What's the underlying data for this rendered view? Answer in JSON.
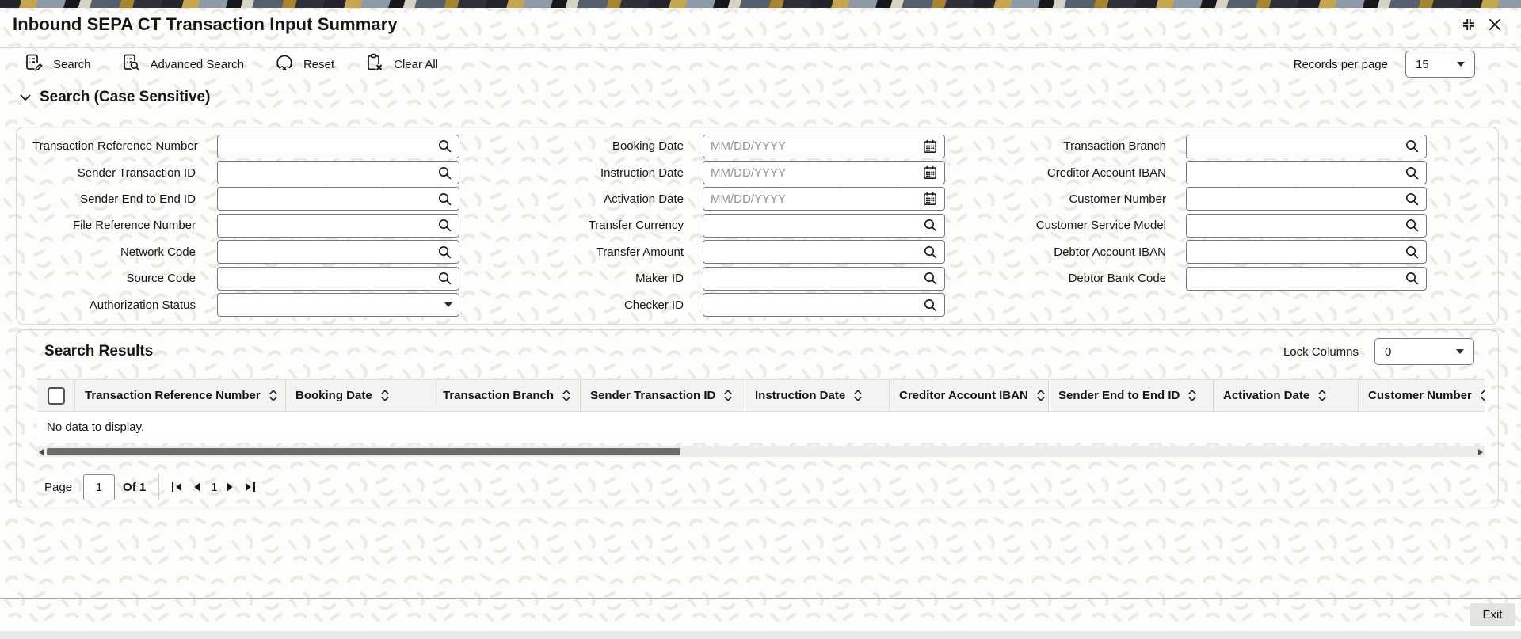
{
  "header": {
    "title": "Inbound SEPA CT Transaction Input Summary"
  },
  "toolbar": {
    "buttons": [
      {
        "label": "Search",
        "icon": "search-form-icon"
      },
      {
        "label": "Advanced Search",
        "icon": "advanced-search-icon"
      },
      {
        "label": "Reset",
        "icon": "reset-icon"
      },
      {
        "label": "Clear All",
        "icon": "clear-all-icon"
      }
    ],
    "records_per_page": {
      "label": "Records per page",
      "value": "15"
    }
  },
  "search": {
    "title": "Search (Case Sensitive)",
    "columns": [
      {
        "fields": [
          {
            "label": "Transaction Reference Number",
            "control": "lookup",
            "value": ""
          },
          {
            "label": "Sender Transaction ID",
            "control": "lookup",
            "value": ""
          },
          {
            "label": "Sender End to End ID",
            "control": "lookup",
            "value": ""
          },
          {
            "label": "File Reference Number",
            "control": "lookup",
            "value": ""
          },
          {
            "label": "Network Code",
            "control": "lookup",
            "value": ""
          },
          {
            "label": "Source Code",
            "control": "lookup",
            "value": ""
          },
          {
            "label": "Authorization Status",
            "control": "select",
            "value": ""
          }
        ]
      },
      {
        "fields": [
          {
            "label": "Booking Date",
            "control": "date",
            "placeholder": "MM/DD/YYYY",
            "value": ""
          },
          {
            "label": "Instruction Date",
            "control": "date",
            "placeholder": "MM/DD/YYYY",
            "value": ""
          },
          {
            "label": "Activation Date",
            "control": "date",
            "placeholder": "MM/DD/YYYY",
            "value": ""
          },
          {
            "label": "Transfer Currency",
            "control": "lookup",
            "value": ""
          },
          {
            "label": "Transfer Amount",
            "control": "lookup",
            "value": ""
          },
          {
            "label": "Maker ID",
            "control": "lookup",
            "value": ""
          },
          {
            "label": "Checker ID",
            "control": "lookup",
            "value": ""
          }
        ]
      },
      {
        "fields": [
          {
            "label": "Transaction Branch",
            "control": "lookup",
            "value": ""
          },
          {
            "label": "Creditor Account IBAN",
            "control": "lookup",
            "value": ""
          },
          {
            "label": "Customer Number",
            "control": "lookup",
            "value": ""
          },
          {
            "label": "Customer Service Model",
            "control": "lookup",
            "value": ""
          },
          {
            "label": "Debtor Account IBAN",
            "control": "lookup",
            "value": ""
          },
          {
            "label": "Debtor Bank Code",
            "control": "lookup",
            "value": ""
          }
        ]
      }
    ]
  },
  "results": {
    "title": "Search Results",
    "lock_columns": {
      "label": "Lock Columns",
      "value": "0"
    },
    "table": {
      "columns": [
        "Transaction Reference Number",
        "Booking Date",
        "Transaction Branch",
        "Sender Transaction ID",
        "Instruction Date",
        "Creditor Account IBAN",
        "Sender End to End ID",
        "Activation Date",
        "Customer Number"
      ],
      "rows": [],
      "empty_message": "No data to display."
    },
    "pagination": {
      "page_label": "Page",
      "page_value": "1",
      "of_label": "Of 1",
      "current_page": "1"
    }
  },
  "footer": {
    "exit_label": "Exit"
  },
  "colors": {
    "text": "#161513",
    "input_border": "#7a7774",
    "panel_border": "#d5d3d0",
    "table_header_bg": "#f4f3f1",
    "scrollbar_thumb": "#6f6d6a",
    "pattern_stroke": "#eceae7"
  }
}
